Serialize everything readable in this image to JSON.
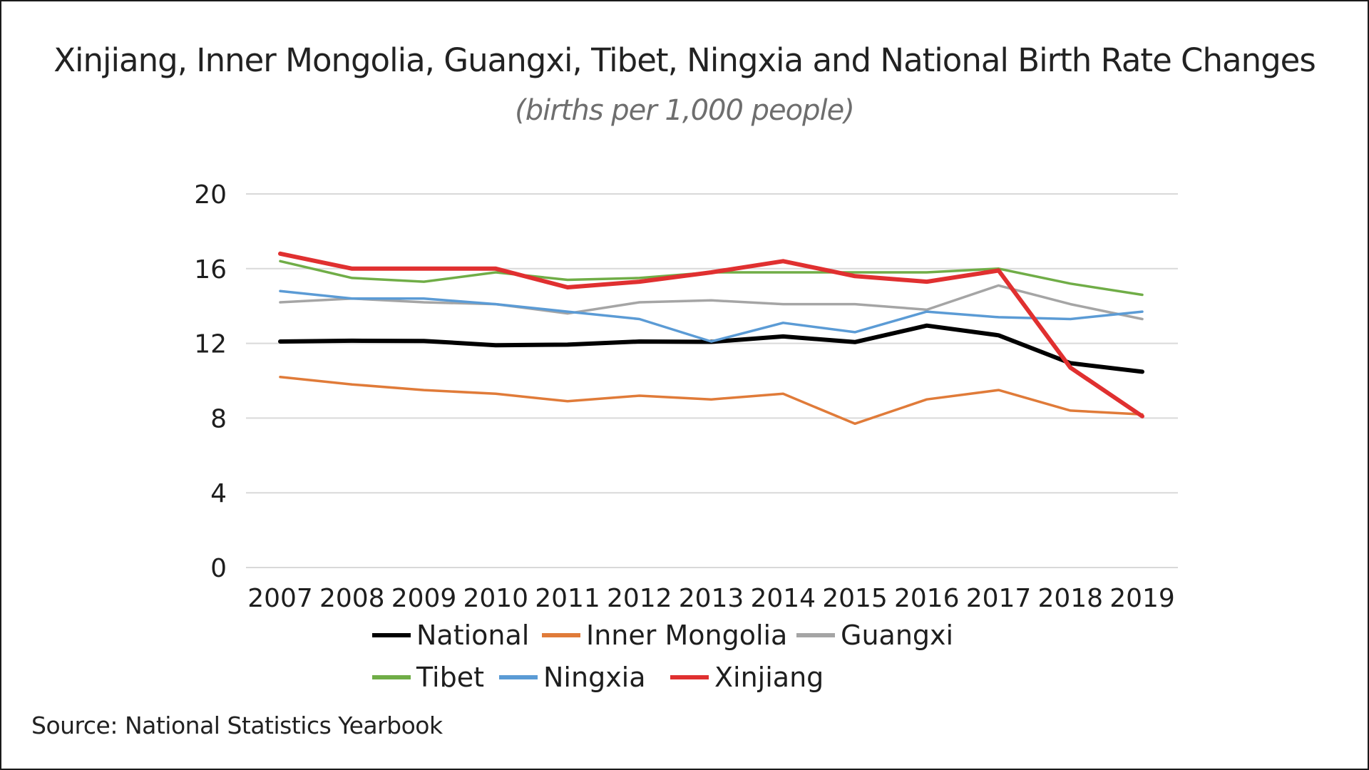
{
  "chart_data": {
    "type": "line",
    "title": "Xinjiang, Inner Mongolia, Guangxi, Tibet, Ningxia and National Birth Rate Changes",
    "subtitle": "(births per 1,000 people)",
    "xlabel": "",
    "ylabel": "",
    "ylim": [
      0,
      20
    ],
    "yticks": [
      0,
      4,
      8,
      12,
      16,
      20
    ],
    "grid": true,
    "legend_position": "bottom",
    "categories": [
      "2007",
      "2008",
      "2009",
      "2010",
      "2011",
      "2012",
      "2013",
      "2014",
      "2015",
      "2016",
      "2017",
      "2018",
      "2019"
    ],
    "series": [
      {
        "name": "National",
        "color": "#000000",
        "values": [
          12.1,
          12.14,
          12.13,
          11.9,
          11.93,
          12.1,
          12.08,
          12.37,
          12.07,
          12.95,
          12.43,
          10.94,
          10.48
        ]
      },
      {
        "name": "Inner Mongolia",
        "color": "#e07b39",
        "values": [
          10.2,
          9.8,
          9.5,
          9.3,
          8.9,
          9.2,
          9.0,
          9.3,
          7.7,
          9.0,
          9.5,
          8.4,
          8.2
        ]
      },
      {
        "name": "Guangxi",
        "color": "#a5a5a5",
        "values": [
          14.2,
          14.4,
          14.2,
          14.1,
          13.6,
          14.2,
          14.3,
          14.1,
          14.1,
          13.8,
          15.1,
          14.1,
          13.3
        ]
      },
      {
        "name": "Tibet",
        "color": "#70ad47",
        "values": [
          16.4,
          15.5,
          15.3,
          15.8,
          15.4,
          15.5,
          15.8,
          15.8,
          15.8,
          15.8,
          16.0,
          15.2,
          14.6
        ]
      },
      {
        "name": "Ningxia",
        "color": "#5b9bd5",
        "values": [
          14.8,
          14.4,
          14.4,
          14.1,
          13.7,
          13.3,
          12.1,
          13.1,
          12.6,
          13.7,
          13.4,
          13.3,
          13.7
        ]
      },
      {
        "name": "Xinjiang",
        "color": "#e03030",
        "values": [
          16.8,
          16.0,
          16.0,
          16.0,
          15.0,
          15.3,
          15.8,
          16.4,
          15.6,
          15.3,
          15.9,
          10.7,
          8.1
        ]
      }
    ]
  },
  "source": "Source: National Statistics Yearbook"
}
